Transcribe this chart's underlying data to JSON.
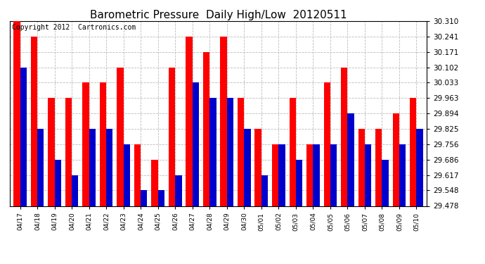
{
  "title": "Barometric Pressure  Daily High/Low  20120511",
  "copyright": "Copyright 2012  Cartronics.com",
  "categories": [
    "04/17",
    "04/18",
    "04/19",
    "04/20",
    "04/21",
    "04/22",
    "04/23",
    "04/24",
    "04/25",
    "04/26",
    "04/27",
    "04/28",
    "04/29",
    "04/30",
    "05/01",
    "05/02",
    "05/03",
    "05/04",
    "05/05",
    "05/06",
    "05/07",
    "05/08",
    "05/09",
    "05/10"
  ],
  "high_values": [
    30.31,
    30.241,
    29.963,
    29.963,
    30.033,
    30.033,
    30.102,
    29.756,
    29.686,
    30.102,
    30.241,
    30.171,
    30.241,
    29.963,
    29.825,
    29.756,
    29.963,
    29.756,
    30.033,
    30.102,
    29.825,
    29.825,
    29.894,
    29.963
  ],
  "low_values": [
    30.102,
    29.825,
    29.686,
    29.617,
    29.825,
    29.825,
    29.756,
    29.548,
    29.548,
    29.617,
    30.033,
    29.963,
    29.963,
    29.825,
    29.617,
    29.756,
    29.686,
    29.756,
    29.756,
    29.894,
    29.756,
    29.686,
    29.756,
    29.825
  ],
  "high_color": "#ff0000",
  "low_color": "#0000cc",
  "ylim_min": 29.478,
  "ylim_max": 30.31,
  "yticks": [
    29.478,
    29.548,
    29.617,
    29.686,
    29.756,
    29.825,
    29.894,
    29.963,
    30.033,
    30.102,
    30.171,
    30.241,
    30.31
  ],
  "background_color": "#ffffff",
  "title_fontsize": 11,
  "copyright_fontsize": 7,
  "bar_width": 0.38
}
